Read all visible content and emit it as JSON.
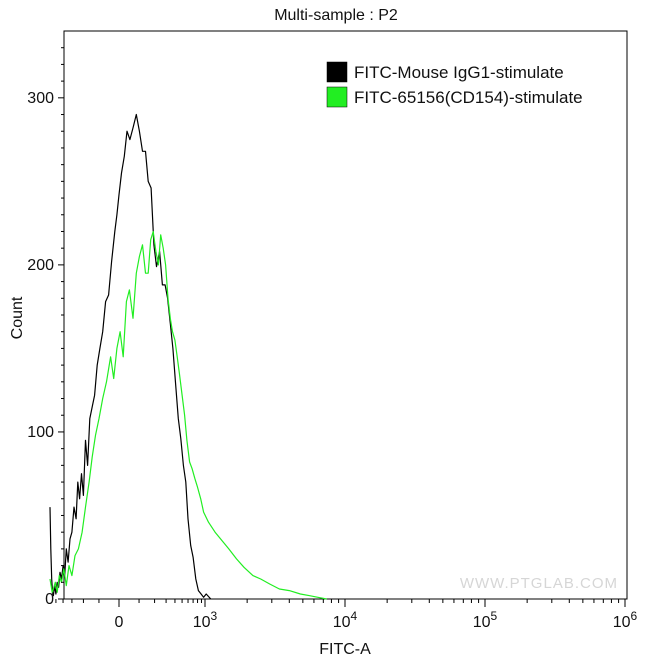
{
  "chart_data": {
    "type": "line",
    "title": "Multi-sample : P2",
    "xlabel": "FITC-A",
    "ylabel": "Count",
    "x_scale": "biexponential",
    "xlim": [
      -600,
      1000000
    ],
    "ylim": [
      0,
      340
    ],
    "x_ticks": [
      {
        "value": 0,
        "label": "0"
      },
      {
        "value": 1000,
        "label": "10",
        "exp": "3"
      },
      {
        "value": 10000,
        "label": "10",
        "exp": "4"
      },
      {
        "value": 100000,
        "label": "10",
        "exp": "5"
      },
      {
        "value": 1000000,
        "label": "10",
        "exp": "6"
      }
    ],
    "y_ticks": [
      0,
      100,
      200,
      300
    ],
    "grid": false,
    "legend_position": "top-right",
    "series": [
      {
        "name": "FITC-Mouse IgG1-stimulate",
        "color": "#000000",
        "points": [
          [
            -600,
            55
          ],
          [
            -585,
            30
          ],
          [
            -570,
            12
          ],
          [
            -555,
            4
          ],
          [
            -540,
            2
          ],
          [
            -520,
            8
          ],
          [
            -500,
            3
          ],
          [
            -480,
            10
          ],
          [
            -460,
            7
          ],
          [
            -440,
            16
          ],
          [
            -420,
            12
          ],
          [
            -400,
            20
          ],
          [
            -380,
            14
          ],
          [
            -360,
            30
          ],
          [
            -340,
            22
          ],
          [
            -320,
            36
          ],
          [
            -300,
            40
          ],
          [
            -280,
            55
          ],
          [
            -260,
            48
          ],
          [
            -245,
            70
          ],
          [
            -230,
            60
          ],
          [
            -215,
            75
          ],
          [
            -200,
            62
          ],
          [
            -185,
            95
          ],
          [
            -170,
            80
          ],
          [
            -155,
            108
          ],
          [
            -140,
            115
          ],
          [
            -125,
            122
          ],
          [
            -110,
            140
          ],
          [
            -95,
            150
          ],
          [
            -80,
            160
          ],
          [
            -65,
            178
          ],
          [
            -50,
            182
          ],
          [
            -35,
            202
          ],
          [
            -20,
            220
          ],
          [
            -10,
            230
          ],
          [
            0,
            242
          ],
          [
            12,
            255
          ],
          [
            25,
            265
          ],
          [
            38,
            280
          ],
          [
            52,
            275
          ],
          [
            68,
            282
          ],
          [
            85,
            290
          ],
          [
            102,
            280
          ],
          [
            120,
            268
          ],
          [
            138,
            268
          ],
          [
            155,
            250
          ],
          [
            175,
            246
          ],
          [
            195,
            212
          ],
          [
            215,
            199
          ],
          [
            240,
            208
          ],
          [
            265,
            188
          ],
          [
            290,
            188
          ],
          [
            315,
            180
          ],
          [
            345,
            165
          ],
          [
            375,
            150
          ],
          [
            410,
            128
          ],
          [
            445,
            108
          ],
          [
            480,
            96
          ],
          [
            520,
            80
          ],
          [
            560,
            70
          ],
          [
            600,
            48
          ],
          [
            650,
            32
          ],
          [
            700,
            25
          ],
          [
            760,
            12
          ],
          [
            820,
            5
          ],
          [
            890,
            3
          ],
          [
            960,
            1
          ],
          [
            1020,
            3
          ],
          [
            1100,
            0
          ]
        ]
      },
      {
        "name": "FITC-65156(CD154)-stimulate",
        "color": "#22ee22",
        "points": [
          [
            -600,
            12
          ],
          [
            -580,
            8
          ],
          [
            -560,
            4
          ],
          [
            -540,
            6
          ],
          [
            -510,
            10
          ],
          [
            -480,
            4
          ],
          [
            -450,
            14
          ],
          [
            -420,
            10
          ],
          [
            -390,
            18
          ],
          [
            -360,
            8
          ],
          [
            -330,
            20
          ],
          [
            -300,
            14
          ],
          [
            -270,
            26
          ],
          [
            -240,
            30
          ],
          [
            -210,
            40
          ],
          [
            -185,
            55
          ],
          [
            -160,
            70
          ],
          [
            -140,
            85
          ],
          [
            -120,
            98
          ],
          [
            -100,
            108
          ],
          [
            -80,
            120
          ],
          [
            -60,
            130
          ],
          [
            -40,
            145
          ],
          [
            -25,
            132
          ],
          [
            -10,
            150
          ],
          [
            5,
            160
          ],
          [
            20,
            145
          ],
          [
            35,
            178
          ],
          [
            50,
            185
          ],
          [
            68,
            168
          ],
          [
            85,
            195
          ],
          [
            102,
            205
          ],
          [
            120,
            212
          ],
          [
            138,
            195
          ],
          [
            155,
            195
          ],
          [
            172,
            215
          ],
          [
            190,
            220
          ],
          [
            210,
            208
          ],
          [
            230,
            200
          ],
          [
            250,
            218
          ],
          [
            272,
            210
          ],
          [
            295,
            200
          ],
          [
            320,
            180
          ],
          [
            345,
            168
          ],
          [
            370,
            160
          ],
          [
            400,
            155
          ],
          [
            430,
            145
          ],
          [
            460,
            135
          ],
          [
            500,
            122
          ],
          [
            540,
            110
          ],
          [
            580,
            95
          ],
          [
            630,
            82
          ],
          [
            680,
            78
          ],
          [
            740,
            72
          ],
          [
            800,
            67
          ],
          [
            880,
            60
          ],
          [
            960,
            52
          ],
          [
            1060,
            46
          ],
          [
            1180,
            40
          ],
          [
            1320,
            35
          ],
          [
            1480,
            30
          ],
          [
            1680,
            24
          ],
          [
            1900,
            19
          ],
          [
            2200,
            14
          ],
          [
            2500,
            12
          ],
          [
            2900,
            9
          ],
          [
            3400,
            6
          ],
          [
            4000,
            5
          ],
          [
            4800,
            3
          ],
          [
            5600,
            2
          ],
          [
            6400,
            1
          ],
          [
            7400,
            0
          ]
        ]
      }
    ]
  },
  "watermark": "WWW.PTGLAB.COM"
}
